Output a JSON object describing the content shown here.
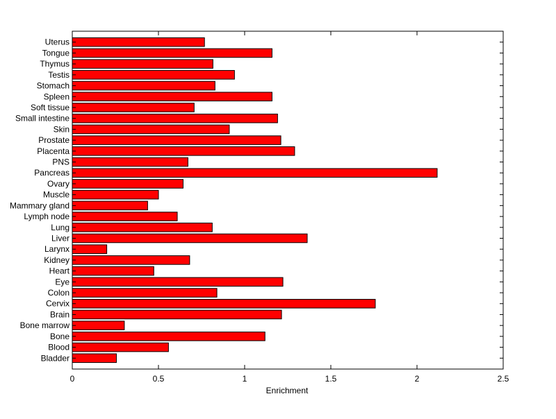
{
  "chart_data": {
    "type": "bar",
    "orientation": "horizontal",
    "title": "",
    "xlabel": "Enrichment",
    "ylabel": "",
    "xlim": [
      0,
      2.5
    ],
    "xticks": [
      "0",
      "0.5",
      "1",
      "1.5",
      "2",
      "2.5"
    ],
    "grid": false,
    "bar_color": "#ff0000",
    "edge_color": "#000000",
    "categories": [
      "Bladder",
      "Blood",
      "Bone",
      "Bone marrow",
      "Brain",
      "Cervix",
      "Colon",
      "Eye",
      "Heart",
      "Kidney",
      "Larynx",
      "Liver",
      "Lung",
      "Lymph node",
      "Mammary gland",
      "Muscle",
      "Ovary",
      "Pancreas",
      "PNS",
      "Placenta",
      "Prostate",
      "Skin",
      "Small intestine",
      "Soft tissue",
      "Spleen",
      "Stomach",
      "Testis",
      "Thymus",
      "Tongue",
      "Uterus"
    ],
    "values": [
      0.256,
      0.558,
      1.118,
      0.302,
      1.214,
      1.758,
      0.839,
      1.222,
      0.473,
      0.681,
      0.2,
      1.363,
      0.812,
      0.609,
      0.437,
      0.5,
      0.643,
      2.117,
      0.671,
      1.29,
      1.21,
      0.911,
      1.191,
      0.707,
      1.159,
      0.828,
      0.941,
      0.816,
      1.159,
      0.767
    ]
  }
}
